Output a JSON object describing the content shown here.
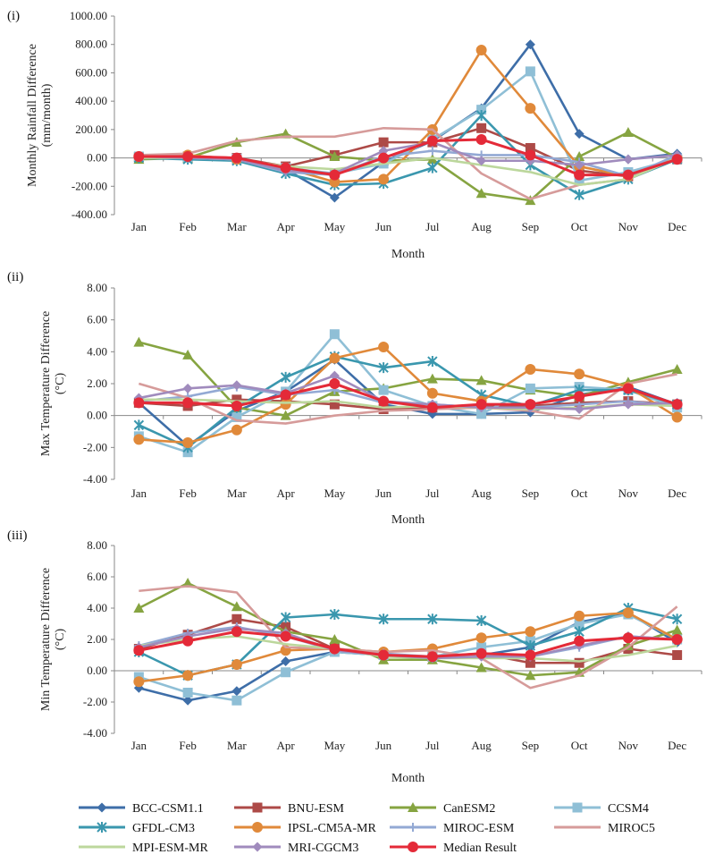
{
  "legend": [
    {
      "name": "BCC-CSM1.1",
      "color": "#3e6ea8",
      "marker": "diamond"
    },
    {
      "name": "BNU-ESM",
      "color": "#ad4a47",
      "marker": "square"
    },
    {
      "name": "CanESM2",
      "color": "#86a441",
      "marker": "triangle"
    },
    {
      "name": "CCSM4",
      "color": "#8fbfd6",
      "marker": "square"
    },
    {
      "name": "GFDL-CM3",
      "color": "#3a97ae",
      "marker": "star"
    },
    {
      "name": "IPSL-CM5A-MR",
      "color": "#e0893a",
      "marker": "circle"
    },
    {
      "name": "MIROC-ESM",
      "color": "#93a9d4",
      "marker": "plus"
    },
    {
      "name": "MIROC5",
      "color": "#d69b9a",
      "marker": "none"
    },
    {
      "name": "MPI-ESM-MR",
      "color": "#bcd79c",
      "marker": "none"
    },
    {
      "name": "MRI-CGCM3",
      "color": "#a08bbd",
      "marker": "diamond"
    },
    {
      "name": "Median Result",
      "color": "#e42a38",
      "marker": "circle"
    }
  ],
  "chart_data": [
    {
      "type": "line",
      "panel_label": "(i)",
      "ylabel": "Monthly Rainfall Difference (mm/month)",
      "ylabel_lines": [
        "Monthly Rainfall Difference",
        "(mm/month)"
      ],
      "xlabel": "Month",
      "categories": [
        "Jan",
        "Feb",
        "Mar",
        "Apr",
        "May",
        "Jun",
        "Jul",
        "Aug",
        "Sep",
        "Oct",
        "Nov",
        "Dec"
      ],
      "ylim": [
        -400,
        1000
      ],
      "yticks": [
        -400,
        -200,
        0,
        200,
        400,
        600,
        800,
        1000
      ],
      "ytick_labels": [
        "-400.00",
        "-200.00",
        "0.00",
        "200.00",
        "400.00",
        "600.00",
        "800.00",
        "1000.00"
      ],
      "series": [
        {
          "name": "BCC-CSM1.1",
          "values": [
            5,
            -5,
            -10,
            -80,
            -280,
            -30,
            120,
            350,
            800,
            170,
            -10,
            30
          ]
        },
        {
          "name": "BNU-ESM",
          "values": [
            5,
            10,
            0,
            -60,
            20,
            110,
            110,
            210,
            70,
            -90,
            -130,
            -10
          ]
        },
        {
          "name": "CanESM2",
          "values": [
            -10,
            0,
            110,
            170,
            10,
            -20,
            -10,
            -250,
            -300,
            10,
            180,
            0
          ]
        },
        {
          "name": "CCSM4",
          "values": [
            10,
            5,
            -5,
            -70,
            -110,
            -40,
            130,
            340,
            610,
            -160,
            -100,
            -5
          ]
        },
        {
          "name": "GFDL-CM3",
          "values": [
            0,
            -10,
            -20,
            -110,
            -190,
            -180,
            -70,
            300,
            -50,
            -260,
            -150,
            -10
          ]
        },
        {
          "name": "IPSL-CM5A-MR",
          "values": [
            10,
            20,
            -10,
            -70,
            -170,
            -150,
            200,
            760,
            350,
            -60,
            -130,
            0
          ]
        },
        {
          "name": "MIROC-ESM",
          "values": [
            5,
            0,
            -10,
            -100,
            -120,
            10,
            50,
            20,
            20,
            -30,
            -130,
            20
          ]
        },
        {
          "name": "MIROC5",
          "values": [
            20,
            30,
            120,
            150,
            150,
            210,
            200,
            -110,
            -290,
            -190,
            -150,
            0
          ]
        },
        {
          "name": "MPI-ESM-MR",
          "values": [
            0,
            0,
            -10,
            -60,
            -80,
            -40,
            0,
            -50,
            -100,
            -190,
            -150,
            0
          ]
        },
        {
          "name": "MRI-CGCM3",
          "values": [
            10,
            0,
            -10,
            -90,
            -110,
            50,
            110,
            -20,
            -20,
            -50,
            -10,
            20
          ]
        },
        {
          "name": "Median Result",
          "values": [
            10,
            10,
            0,
            -70,
            -120,
            0,
            120,
            130,
            20,
            -120,
            -120,
            -10
          ]
        }
      ]
    },
    {
      "type": "line",
      "panel_label": "(ii)",
      "ylabel": "Max Temperature Difference (°C)",
      "ylabel_lines": [
        "Max Temperature Difference",
        "(°C)"
      ],
      "xlabel": "Month",
      "categories": [
        "Jan",
        "Feb",
        "Mar",
        "Apr",
        "May",
        "Jun",
        "Jul",
        "Aug",
        "Sep",
        "Oct",
        "Nov",
        "Dec"
      ],
      "ylim": [
        -4,
        8
      ],
      "yticks": [
        -4,
        -2,
        0,
        2,
        4,
        6,
        8
      ],
      "ytick_labels": [
        "-4.00",
        "-2.00",
        "0.00",
        "2.00",
        "4.00",
        "6.00",
        "8.00"
      ],
      "series": [
        {
          "name": "BCC-CSM1.1",
          "values": [
            0.8,
            -1.9,
            0.3,
            1.5,
            3.5,
            0.7,
            0.1,
            0.1,
            0.2,
            1.3,
            1.8,
            0.7
          ]
        },
        {
          "name": "BNU-ESM",
          "values": [
            0.8,
            0.6,
            1.0,
            0.9,
            0.7,
            0.4,
            0.5,
            0.6,
            0.6,
            0.8,
            0.9,
            0.7
          ]
        },
        {
          "name": "CanESM2",
          "values": [
            4.6,
            3.8,
            0.5,
            0.0,
            1.5,
            1.7,
            2.3,
            2.2,
            1.6,
            1.2,
            2.1,
            2.9
          ]
        },
        {
          "name": "CCSM4",
          "values": [
            -1.3,
            -2.3,
            -0.1,
            1.5,
            5.1,
            1.6,
            0.6,
            0.1,
            1.7,
            1.8,
            1.6,
            0.5
          ]
        },
        {
          "name": "GFDL-CM3",
          "values": [
            -0.6,
            -2.0,
            0.5,
            2.4,
            3.7,
            3.0,
            3.4,
            1.3,
            0.6,
            1.6,
            1.6,
            0.7
          ]
        },
        {
          "name": "IPSL-CM5A-MR",
          "values": [
            -1.5,
            -1.7,
            -0.9,
            0.7,
            3.6,
            4.3,
            1.4,
            0.9,
            2.9,
            2.6,
            1.8,
            -0.1
          ]
        },
        {
          "name": "MIROC-ESM",
          "values": [
            0.9,
            1.2,
            1.8,
            1.3,
            1.6,
            0.8,
            0.7,
            0.5,
            0.5,
            0.7,
            0.9,
            0.6
          ]
        },
        {
          "name": "MIROC5",
          "values": [
            2.0,
            1.1,
            -0.3,
            -0.5,
            0.0,
            0.3,
            0.4,
            0.5,
            0.3,
            -0.2,
            2.0,
            2.6
          ]
        },
        {
          "name": "MPI-ESM-MR",
          "values": [
            1.0,
            1.0,
            0.9,
            0.8,
            0.9,
            0.5,
            0.6,
            0.5,
            0.4,
            0.5,
            0.7,
            0.6
          ]
        },
        {
          "name": "MRI-CGCM3",
          "values": [
            1.1,
            1.7,
            1.9,
            1.4,
            2.5,
            0.9,
            0.7,
            0.5,
            0.5,
            0.4,
            0.7,
            0.8
          ]
        },
        {
          "name": "Median Result",
          "values": [
            0.8,
            0.8,
            0.6,
            1.3,
            2.0,
            0.9,
            0.5,
            0.7,
            0.7,
            1.2,
            1.7,
            0.7
          ]
        }
      ]
    },
    {
      "type": "line",
      "panel_label": "(iii)",
      "ylabel": "Min Temperature Difference (°C)",
      "ylabel_lines": [
        "Min Temperature Difference",
        "(°C)"
      ],
      "xlabel": "Month",
      "categories": [
        "Jan",
        "Feb",
        "Mar",
        "Apr",
        "May",
        "Jun",
        "Jul",
        "Aug",
        "Sep",
        "Oct",
        "Nov",
        "Dec"
      ],
      "ylim": [
        -4,
        8
      ],
      "yticks": [
        -4,
        -2,
        0,
        2,
        4,
        6,
        8
      ],
      "ytick_labels": [
        "-4.00",
        "-2.00",
        "0.00",
        "2.00",
        "4.00",
        "6.00",
        "8.00"
      ],
      "series": [
        {
          "name": "BCC-CSM1.1",
          "values": [
            -1.1,
            -1.9,
            -1.3,
            0.6,
            1.2,
            1.0,
            0.8,
            1.0,
            1.5,
            3.1,
            3.7,
            1.8
          ]
        },
        {
          "name": "BNU-ESM",
          "values": [
            1.4,
            2.3,
            3.3,
            2.8,
            1.4,
            1.0,
            0.9,
            1.1,
            0.5,
            0.5,
            1.4,
            1.0
          ]
        },
        {
          "name": "CanESM2",
          "values": [
            4.0,
            5.6,
            4.1,
            2.5,
            2.0,
            0.7,
            0.7,
            0.2,
            -0.3,
            -0.1,
            1.6,
            2.6
          ]
        },
        {
          "name": "CCSM4",
          "values": [
            -0.4,
            -1.4,
            -1.9,
            -0.1,
            1.2,
            1.0,
            0.9,
            1.5,
            1.9,
            3.0,
            3.6,
            2.0
          ]
        },
        {
          "name": "GFDL-CM3",
          "values": [
            1.2,
            -0.3,
            0.4,
            3.4,
            3.6,
            3.3,
            3.3,
            3.2,
            1.6,
            2.5,
            4.0,
            3.3
          ]
        },
        {
          "name": "IPSL-CM5A-MR",
          "values": [
            -0.7,
            -0.3,
            0.4,
            1.3,
            1.4,
            1.2,
            1.4,
            2.1,
            2.5,
            3.5,
            3.7,
            2.0
          ]
        },
        {
          "name": "MIROC-ESM",
          "values": [
            1.6,
            2.4,
            2.8,
            2.2,
            1.3,
            1.1,
            0.9,
            1.0,
            0.9,
            1.5,
            2.2,
            2.0
          ]
        },
        {
          "name": "MIROC5",
          "values": [
            5.1,
            5.4,
            5.0,
            1.5,
            1.4,
            1.2,
            1.3,
            0.8,
            -1.1,
            -0.3,
            1.5,
            4.1
          ]
        },
        {
          "name": "MPI-ESM-MR",
          "values": [
            1.6,
            2.0,
            2.2,
            1.7,
            1.4,
            0.9,
            0.8,
            0.8,
            0.8,
            0.6,
            1.0,
            1.6
          ]
        },
        {
          "name": "MRI-CGCM3",
          "values": [
            1.5,
            2.2,
            2.7,
            2.4,
            1.3,
            1.0,
            0.8,
            0.9,
            0.9,
            1.6,
            2.2,
            2.0
          ]
        },
        {
          "name": "Median Result",
          "values": [
            1.3,
            1.9,
            2.5,
            2.2,
            1.4,
            1.0,
            0.9,
            1.1,
            1.0,
            1.9,
            2.1,
            2.0
          ]
        }
      ]
    }
  ]
}
